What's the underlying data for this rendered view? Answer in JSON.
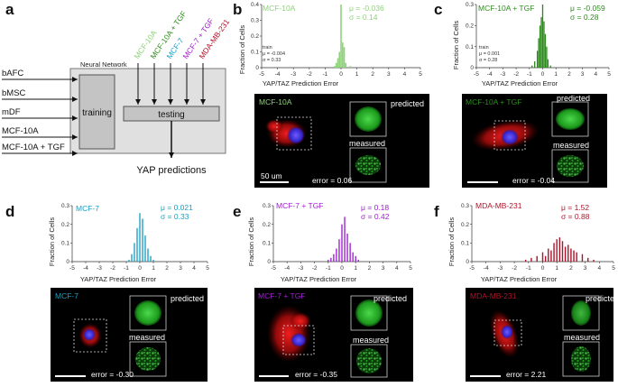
{
  "panel_labels": {
    "a": "a",
    "b": "b",
    "c": "c",
    "d": "d",
    "e": "e",
    "f": "f"
  },
  "schematic": {
    "network_label": "Neural Network",
    "training_label": "training",
    "testing_label": "testing",
    "output_label": "YAP predictions",
    "train_inputs": [
      "bAFC",
      "bMSC",
      "mDF",
      "MCF-10A",
      "MCF-10A + TGF"
    ],
    "test_inputs": [
      {
        "label": "MCF-10A",
        "color": "#8fd27a"
      },
      {
        "label": "MCF-10A + TGF",
        "color": "#2e8b1e"
      },
      {
        "label": "MCF-7",
        "color": "#1aa0c4"
      },
      {
        "label": "MCF-7 + TGF",
        "color": "#a020d0"
      },
      {
        "label": "MDA-MB-231",
        "color": "#b0142a"
      }
    ]
  },
  "common": {
    "ylabel": "Fraction of Cells",
    "xlabel": "YAP/TAZ Prediction Error",
    "predicted_label": "predicted",
    "measured_label": "measured",
    "scale_label": "50 um"
  },
  "panels": [
    {
      "id": "b",
      "cell_line": "MCF-10A",
      "color": "#8fd27a",
      "mu": "μ = -0.036",
      "sigma": "σ = 0.14",
      "train_title": "train",
      "train_mu": "μ = -0.004",
      "train_sigma": "σ = 0.33",
      "error": "error = 0.06",
      "ylim": [
        0,
        0.4
      ],
      "yticks": [
        "0",
        "0.1",
        "0.2",
        "0.3",
        "0.4"
      ]
    },
    {
      "id": "c",
      "cell_line": "MCF-10A + TGF",
      "color": "#2e8b1e",
      "mu": "μ = -0.059",
      "sigma": "σ = 0.28",
      "train_title": "train",
      "train_mu": "μ = 0.001",
      "train_sigma": "σ = 0.28",
      "error": "error = -0.04",
      "ylim": [
        0,
        0.3
      ],
      "yticks": [
        "0",
        "0.1",
        "0.2",
        "0.3"
      ]
    },
    {
      "id": "d",
      "cell_line": "MCF-7",
      "color": "#1aa0c4",
      "mu": "μ = 0.021",
      "sigma": "σ = 0.33",
      "error": "error = -0.30",
      "ylim": [
        0,
        0.3
      ],
      "yticks": [
        "0",
        "0.1",
        "0.2",
        "0.3"
      ]
    },
    {
      "id": "e",
      "cell_line": "MCF-7 + TGF",
      "color": "#a020d0",
      "mu": "μ = 0.18",
      "sigma": "σ = 0.42",
      "error": "error = -0.35",
      "ylim": [
        0,
        0.3
      ],
      "yticks": [
        "0",
        "0.1",
        "0.2",
        "0.3"
      ]
    },
    {
      "id": "f",
      "cell_line": "MDA-MB-231",
      "color": "#b0142a",
      "mu": "μ = 1.52",
      "sigma": "σ = 0.88",
      "error": "error = 2.21",
      "ylim": [
        0,
        0.3
      ],
      "yticks": [
        "0",
        "0.1",
        "0.2",
        "0.3"
      ]
    }
  ],
  "chart_data": [
    {
      "type": "bar",
      "title": "MCF-10A",
      "xlabel": "YAP/TAZ Prediction Error",
      "ylabel": "Fraction of Cells",
      "xlim": [
        -5,
        5
      ],
      "ylim": [
        0,
        0.4
      ],
      "x": [
        -0.4,
        -0.3,
        -0.2,
        -0.1,
        0,
        0.1,
        0.2,
        0.3,
        0.6
      ],
      "values": [
        0.01,
        0.03,
        0.06,
        0.1,
        0.4,
        0.16,
        0.13,
        0.03,
        0.01
      ]
    },
    {
      "type": "bar",
      "title": "MCF-10A + TGF",
      "xlabel": "YAP/TAZ Prediction Error",
      "ylabel": "Fraction of Cells",
      "xlim": [
        -5,
        5
      ],
      "ylim": [
        0,
        0.3
      ],
      "x": [
        -0.8,
        -0.6,
        -0.4,
        -0.3,
        -0.2,
        -0.1,
        0,
        0.1,
        0.2,
        0.3,
        0.4,
        0.6
      ],
      "values": [
        0.01,
        0.03,
        0.08,
        0.14,
        0.2,
        0.24,
        0.3,
        0.22,
        0.16,
        0.1,
        0.04,
        0.01
      ]
    },
    {
      "type": "bar",
      "title": "MCF-7",
      "xlabel": "YAP/TAZ Prediction Error",
      "ylabel": "Fraction of Cells",
      "xlim": [
        -5,
        5
      ],
      "ylim": [
        0,
        0.3
      ],
      "x": [
        -0.8,
        -0.6,
        -0.4,
        -0.2,
        0,
        0.2,
        0.4,
        0.6,
        0.8,
        1.0
      ],
      "values": [
        0.01,
        0.04,
        0.1,
        0.18,
        0.26,
        0.23,
        0.14,
        0.07,
        0.03,
        0.01
      ]
    },
    {
      "type": "bar",
      "title": "MCF-7 + TGF",
      "xlabel": "YAP/TAZ Prediction Error",
      "ylabel": "Fraction of Cells",
      "xlim": [
        -5,
        5
      ],
      "ylim": [
        0,
        0.3
      ],
      "x": [
        -1.0,
        -0.8,
        -0.6,
        -0.4,
        -0.2,
        0,
        0.2,
        0.4,
        0.6,
        0.8,
        1.0,
        1.2
      ],
      "values": [
        0.01,
        0.02,
        0.04,
        0.07,
        0.12,
        0.2,
        0.24,
        0.15,
        0.1,
        0.05,
        0.03,
        0.01
      ]
    },
    {
      "type": "bar",
      "title": "MDA-MB-231",
      "xlabel": "YAP/TAZ Prediction Error",
      "ylabel": "Fraction of Cells",
      "xlim": [
        -5,
        5
      ],
      "ylim": [
        0,
        0.3
      ],
      "x": [
        -1.2,
        -0.8,
        -0.4,
        0,
        0.2,
        0.4,
        0.6,
        0.8,
        1.0,
        1.2,
        1.4,
        1.6,
        1.8,
        2.0,
        2.2,
        2.4,
        2.8,
        3.2,
        3.6
      ],
      "values": [
        0.01,
        0.02,
        0.03,
        0.05,
        0.03,
        0.07,
        0.06,
        0.1,
        0.12,
        0.13,
        0.11,
        0.08,
        0.09,
        0.07,
        0.06,
        0.05,
        0.04,
        0.02,
        0.01
      ]
    }
  ]
}
